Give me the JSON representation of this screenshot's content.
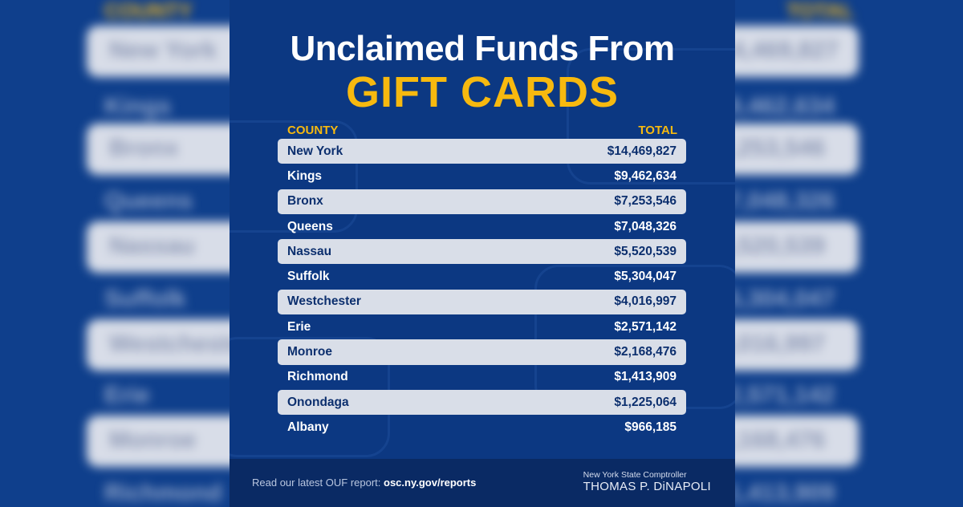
{
  "title": {
    "line1": "Unclaimed Funds From",
    "line2": "GIFT CARDS"
  },
  "table": {
    "headers": {
      "county": "COUNTY",
      "total": "TOTAL"
    },
    "rows": [
      {
        "county": "New York",
        "total": "$14,469,827"
      },
      {
        "county": "Kings",
        "total": "$9,462,634"
      },
      {
        "county": "Bronx",
        "total": "$7,253,546"
      },
      {
        "county": "Queens",
        "total": "$7,048,326"
      },
      {
        "county": "Nassau",
        "total": "$5,520,539"
      },
      {
        "county": "Suffolk",
        "total": "$5,304,047"
      },
      {
        "county": "Westchester",
        "total": "$4,016,997"
      },
      {
        "county": "Erie",
        "total": "$2,571,142"
      },
      {
        "county": "Monroe",
        "total": "$2,168,476"
      },
      {
        "county": "Richmond",
        "total": "$1,413,909"
      },
      {
        "county": "Onondaga",
        "total": "$1,225,064"
      },
      {
        "county": "Albany",
        "total": "$966,185"
      }
    ]
  },
  "footer": {
    "prefix": "Read our latest OUF report: ",
    "url": "osc.ny.gov/reports",
    "office": "New York State Comptroller",
    "name": "THOMAS P. DiNAPOLI"
  },
  "colors": {
    "navy": "#0c3882",
    "gold": "#f7b90f",
    "shaded_row": "#d9dee8"
  }
}
